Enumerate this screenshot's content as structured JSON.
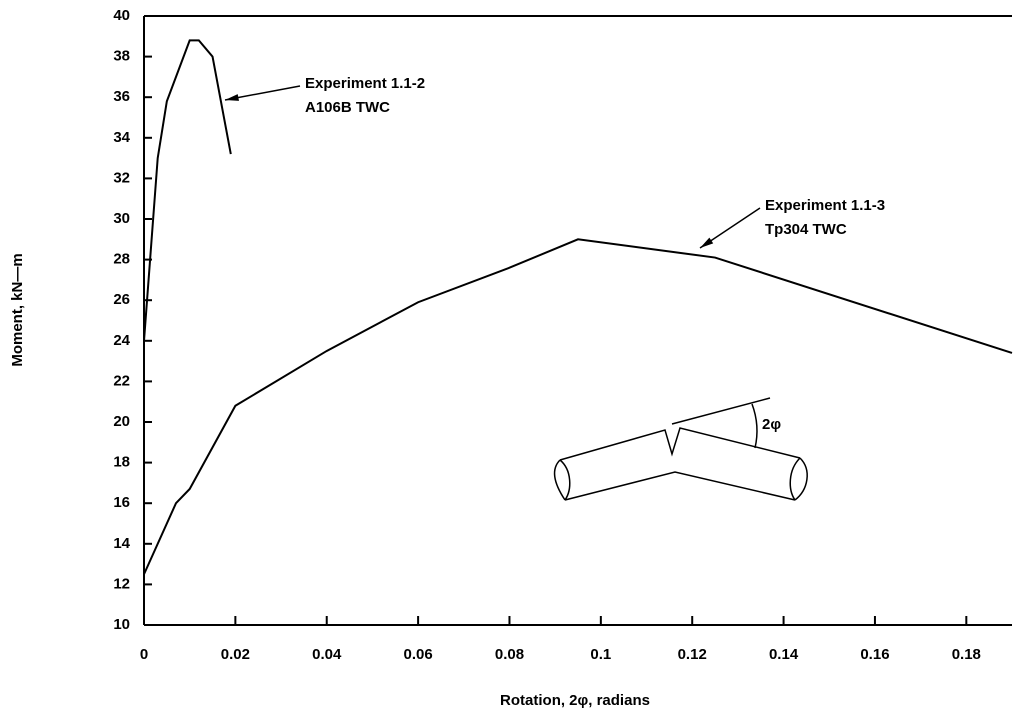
{
  "chart_data": {
    "type": "line",
    "x_label": "Rotation, 2φ, radians",
    "y_label": "Moment, kN—m",
    "xlim": [
      0,
      0.19
    ],
    "ylim": [
      10,
      40
    ],
    "xticks": [
      0,
      0.02,
      0.04,
      0.06,
      0.08,
      0.1,
      0.12,
      0.14,
      0.16,
      0.18
    ],
    "yticks": [
      10,
      12,
      14,
      16,
      18,
      20,
      22,
      24,
      26,
      28,
      30,
      32,
      34,
      36,
      38,
      40
    ],
    "series": [
      {
        "color": "#000000",
        "x": [
          0,
          0.003,
          0.005,
          0.01,
          0.012,
          0.015,
          0.019
        ],
        "values": [
          24,
          33,
          35.8,
          38.8,
          38.8,
          38,
          33.2
        ]
      },
      {
        "color": "#000000",
        "x": [
          0,
          0.007,
          0.01,
          0.02,
          0.04,
          0.06,
          0.08,
          0.095,
          0.125,
          0.19
        ],
        "values": [
          12.5,
          16,
          16.7,
          20.8,
          23.5,
          25.9,
          27.6,
          29,
          28.1,
          23.4
        ]
      }
    ],
    "annotations": [
      {
        "lines": [
          "Experiment 1.1-2",
          "A106B TWC"
        ]
      },
      {
        "lines": [
          "Experiment 1.1-3",
          "Tp304 TWC"
        ]
      }
    ],
    "diagram_label": "2φ"
  }
}
